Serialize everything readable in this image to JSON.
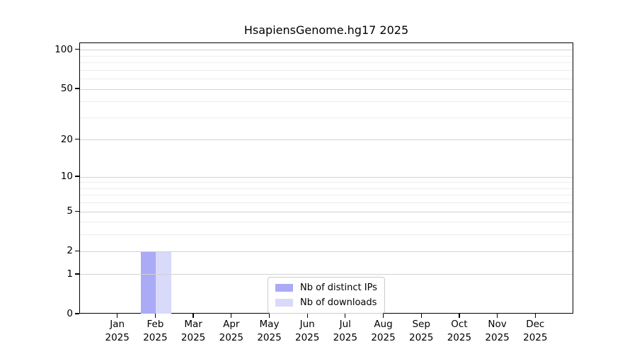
{
  "chart_data": {
    "type": "bar",
    "title": "HsapiensGenome.hg17 2025",
    "categories": [
      "Jan 2025",
      "Feb 2025",
      "Mar 2025",
      "Apr 2025",
      "May 2025",
      "Jun 2025",
      "Jul 2025",
      "Aug 2025",
      "Sep 2025",
      "Oct 2025",
      "Nov 2025",
      "Dec 2025"
    ],
    "series": [
      {
        "name": "Nb of distinct IPs",
        "color": "#aaaaf6",
        "values": [
          0,
          2,
          0,
          0,
          0,
          0,
          0,
          0,
          0,
          0,
          0,
          0
        ]
      },
      {
        "name": "Nb of downloads",
        "color": "#d9d9fa",
        "values": [
          0,
          2,
          0,
          0,
          0,
          0,
          0,
          0,
          0,
          0,
          0,
          0
        ]
      }
    ],
    "xlabel": "",
    "ylabel": "",
    "yscale": "log1p",
    "ylim": [
      0,
      113
    ],
    "yticks_major": [
      0,
      1,
      2,
      5,
      10,
      20,
      50,
      100
    ],
    "yticks_minor": [
      3,
      4,
      6,
      7,
      8,
      9,
      30,
      40,
      60,
      70,
      80,
      90
    ],
    "grid": "horizontal",
    "legend_position": "lower center",
    "colors": {
      "axis": "#000000",
      "grid_major": "#d2d2d2",
      "grid_minor": "#ededed",
      "background": "#ffffff"
    }
  }
}
